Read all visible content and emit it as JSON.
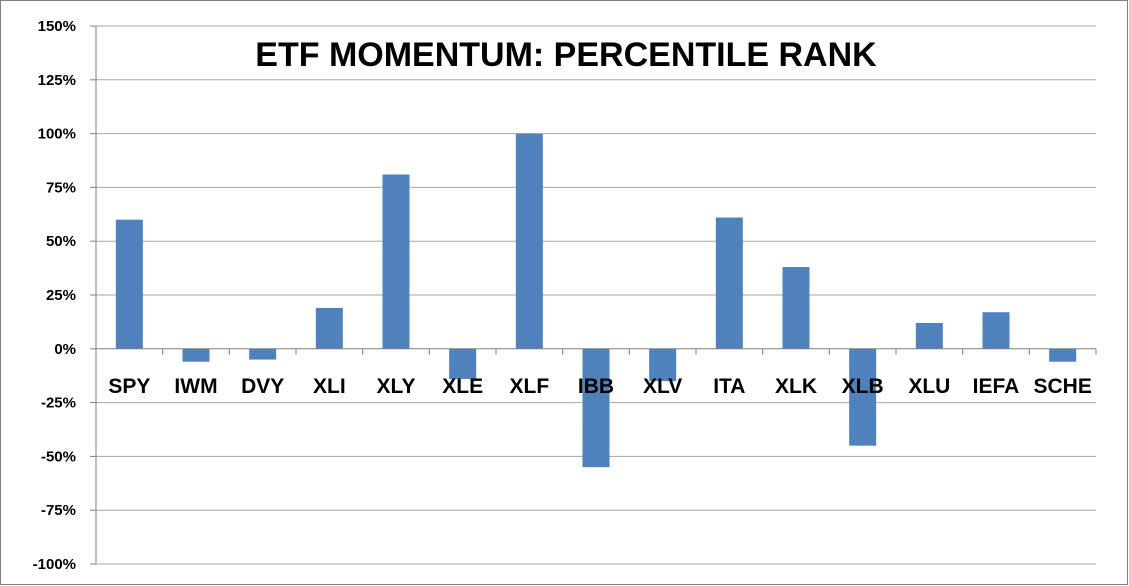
{
  "chart_data": {
    "type": "bar",
    "title": "ETF MOMENTUM: PERCENTILE RANK",
    "categories": [
      "SPY",
      "IWM",
      "DVY",
      "XLI",
      "XLY",
      "XLE",
      "XLF",
      "IBB",
      "XLV",
      "ITA",
      "XLK",
      "XLB",
      "XLU",
      "IEFA",
      "SCHE"
    ],
    "values": [
      60,
      -6,
      -5,
      19,
      81,
      -14,
      100,
      -55,
      -15,
      61,
      38,
      -45,
      12,
      17,
      -6
    ],
    "ylim": [
      -100,
      150
    ],
    "yticks": [
      150,
      125,
      100,
      75,
      50,
      25,
      0,
      -25,
      -50,
      -75,
      -100
    ],
    "ytick_labels": [
      "150%",
      "125%",
      "100%",
      "75%",
      "50%",
      "25%",
      "0%",
      "-25%",
      "-50%",
      "-75%",
      "-100%"
    ],
    "xlabel": "",
    "ylabel": "",
    "grid": true,
    "legend": "none",
    "bar_color": "#4f81bd",
    "grid_color": "#a6a6a6"
  }
}
